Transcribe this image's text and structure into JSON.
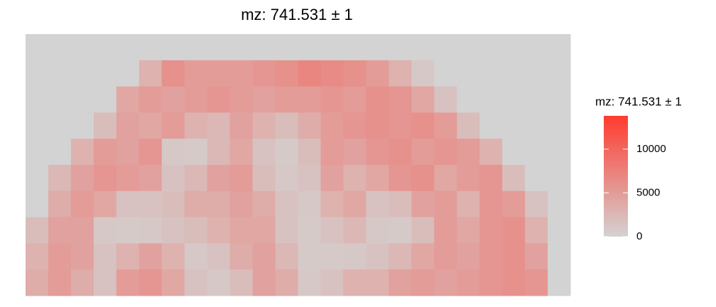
{
  "chart_data": {
    "type": "heatmap",
    "title": "mz: 741.531 ± 1",
    "legend_title": "mz: 741.531 ± 1",
    "low_color": "#d3d3d3",
    "high_color": "#ff3b2f",
    "clim": [
      0,
      13800
    ],
    "cticks": [
      0,
      5000,
      10000
    ],
    "values": [
      [
        0,
        0,
        0,
        0,
        0,
        0,
        0,
        0,
        0,
        0,
        0,
        0,
        0,
        0,
        0,
        0,
        0,
        0,
        0,
        0,
        0,
        0,
        0,
        0
      ],
      [
        0,
        0,
        0,
        0,
        0,
        3000,
        6000,
        5000,
        5000,
        5000,
        5500,
        6000,
        7000,
        6500,
        6000,
        5000,
        3000,
        1000,
        0,
        0,
        0,
        0,
        0,
        0
      ],
      [
        0,
        0,
        0,
        0,
        4000,
        5000,
        4500,
        5000,
        5500,
        5000,
        4500,
        5000,
        5000,
        5500,
        5000,
        6000,
        5500,
        4000,
        1500,
        0,
        0,
        0,
        0,
        0
      ],
      [
        0,
        0,
        0,
        2000,
        4500,
        4000,
        5000,
        3000,
        2500,
        4500,
        3000,
        2000,
        3500,
        5000,
        5500,
        6000,
        5500,
        6000,
        5000,
        2000,
        0,
        0,
        0,
        0
      ],
      [
        0,
        0,
        3000,
        5000,
        4500,
        5500,
        1000,
        800,
        2500,
        4000,
        1500,
        800,
        2000,
        5000,
        4500,
        5500,
        6000,
        5000,
        5500,
        5000,
        3000,
        0,
        0,
        0
      ],
      [
        0,
        2500,
        4500,
        5500,
        5000,
        4500,
        1500,
        2500,
        4500,
        5000,
        2000,
        1000,
        1500,
        4500,
        3000,
        4000,
        5500,
        6000,
        4000,
        5000,
        5500,
        2000,
        0,
        0
      ],
      [
        0,
        3500,
        5000,
        4000,
        1500,
        1500,
        2000,
        3500,
        3500,
        4500,
        3500,
        1500,
        1000,
        3000,
        4000,
        1500,
        2000,
        4500,
        5000,
        3000,
        5500,
        5000,
        1500,
        0
      ],
      [
        2000,
        4500,
        4500,
        1000,
        800,
        1000,
        1500,
        2000,
        3000,
        4000,
        4000,
        1500,
        800,
        1500,
        2500,
        1000,
        800,
        2000,
        5000,
        4000,
        5500,
        6000,
        3000,
        0
      ],
      [
        3000,
        5000,
        4500,
        1500,
        3000,
        4500,
        3000,
        1000,
        1500,
        3500,
        4500,
        2500,
        800,
        800,
        1000,
        1500,
        2500,
        4000,
        5000,
        4500,
        5500,
        6000,
        4500,
        0
      ],
      [
        3500,
        5000,
        3500,
        1500,
        5000,
        5500,
        4000,
        1500,
        1000,
        2000,
        4500,
        3500,
        1000,
        1500,
        3000,
        3000,
        4500,
        5000,
        4500,
        5000,
        5500,
        6000,
        5500,
        0
      ]
    ]
  }
}
